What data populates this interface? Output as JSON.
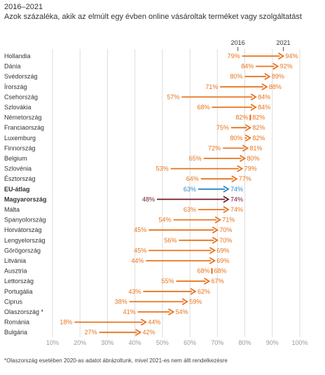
{
  "header": {
    "year_range": "2016–2021",
    "title": "Azok százaléka, akik az elmúlt egy évben online vásároltak terméket vagy szolgáltatást"
  },
  "footnote": "*Olaszország esetében 2020-as adatot ábrázoltunk, mivel 2021-es nem állt rendelkezésre",
  "colors": {
    "default": "#e8731c",
    "eu": "#2c88c4",
    "hungary": "#6b1d2a",
    "grid": "#dddddd",
    "axis_text": "#999999",
    "country_text": "#333333"
  },
  "chart_data": {
    "type": "dumbbell-arrow",
    "start_label": "2016",
    "end_label": "2021",
    "xlim": [
      10,
      100
    ],
    "x_ticks": [
      "10%",
      "20%",
      "30%",
      "40%",
      "50%",
      "60%",
      "70%",
      "80%",
      "90%",
      "100%"
    ],
    "rows": [
      {
        "country": "Hollandia",
        "v2016": 79,
        "v2021": 94,
        "label2016": "79%",
        "label2021": "94%",
        "group": "default"
      },
      {
        "country": "Dánia",
        "v2016": 84,
        "v2021": 92,
        "label2016": "84%",
        "label2021": "92%",
        "group": "default"
      },
      {
        "country": "Svédország",
        "v2016": 80,
        "v2021": 89,
        "label2016": "80%",
        "label2021": "89%",
        "group": "default"
      },
      {
        "country": "Írország",
        "v2016": 71,
        "v2021": 88,
        "label2016": "71%",
        "label2021": "88%",
        "group": "default"
      },
      {
        "country": "Csehország",
        "v2016": 57,
        "v2021": 84,
        "label2016": "57%",
        "label2021": "84%",
        "group": "default"
      },
      {
        "country": "Szlovákia",
        "v2016": 68,
        "v2021": 84,
        "label2016": "68%",
        "label2021": "84%",
        "group": "default"
      },
      {
        "country": "Németország",
        "v2016": 82,
        "v2021": 82,
        "label2016": "82%",
        "label2021": "82%",
        "group": "default"
      },
      {
        "country": "Franciaország",
        "v2016": 75,
        "v2021": 82,
        "label2016": "75%",
        "label2021": "82%",
        "group": "default"
      },
      {
        "country": "Luxemburg",
        "v2016": 80,
        "v2021": 82,
        "label2016": "80%",
        "label2021": "82%",
        "group": "default"
      },
      {
        "country": "Finnország",
        "v2016": 72,
        "v2021": 81,
        "label2016": "72%",
        "label2021": "81%",
        "group": "default"
      },
      {
        "country": "Belgium",
        "v2016": 65,
        "v2021": 80,
        "label2016": "65%",
        "label2021": "80%",
        "group": "default"
      },
      {
        "country": "Szlovénia",
        "v2016": 53,
        "v2021": 79,
        "label2016": "53%",
        "label2021": "79%",
        "group": "default"
      },
      {
        "country": "Észtország",
        "v2016": 64,
        "v2021": 77,
        "label2016": "64%",
        "label2021": "77%",
        "group": "default"
      },
      {
        "country": "EU-átlag",
        "v2016": 63,
        "v2021": 74,
        "label2016": "63%",
        "label2021": "74%",
        "group": "eu",
        "bold": true
      },
      {
        "country": "Magyarország",
        "v2016": 48,
        "v2021": 74,
        "label2016": "48%",
        "label2021": "74%",
        "group": "hungary",
        "bold": true
      },
      {
        "country": "Málta",
        "v2016": 63,
        "v2021": 74,
        "label2016": "63%",
        "label2021": "74%",
        "group": "default"
      },
      {
        "country": "Spanyolország",
        "v2016": 54,
        "v2021": 71,
        "label2016": "54%",
        "label2021": "71%",
        "group": "default"
      },
      {
        "country": "Horvátország",
        "v2016": 45,
        "v2021": 70,
        "label2016": "45%",
        "label2021": "70%",
        "group": "default"
      },
      {
        "country": "Lengyelország",
        "v2016": 56,
        "v2021": 70,
        "label2016": "56%",
        "label2021": "70%",
        "group": "default"
      },
      {
        "country": "Görögország",
        "v2016": 45,
        "v2021": 69,
        "label2016": "45%",
        "label2021": "69%",
        "group": "default"
      },
      {
        "country": "Litvánia",
        "v2016": 44,
        "v2021": 69,
        "label2016": "44%",
        "label2021": "69%",
        "group": "default"
      },
      {
        "country": "Ausztria",
        "v2016": 68,
        "v2021": 68,
        "label2016": "68%",
        "label2021": "68%",
        "group": "default"
      },
      {
        "country": "Lettország",
        "v2016": 55,
        "v2021": 67,
        "label2016": "55%",
        "label2021": "67%",
        "group": "default"
      },
      {
        "country": "Portugália",
        "v2016": 43,
        "v2021": 62,
        "label2016": "43%",
        "label2021": "62%",
        "group": "default"
      },
      {
        "country": "Ciprus",
        "v2016": 38,
        "v2021": 59,
        "label2016": "38%",
        "label2021": "59%",
        "group": "default"
      },
      {
        "country": "Olaszország *",
        "v2016": 41,
        "v2021": 54,
        "label2016": "41%",
        "label2021": "54%",
        "group": "default"
      },
      {
        "country": "Románia",
        "v2016": 18,
        "v2021": 44,
        "label2016": "18%",
        "label2021": "44%",
        "group": "default"
      },
      {
        "country": "Bulgária",
        "v2016": 27,
        "v2021": 42,
        "label2016": "27%",
        "label2021": "42%",
        "group": "default"
      }
    ]
  }
}
